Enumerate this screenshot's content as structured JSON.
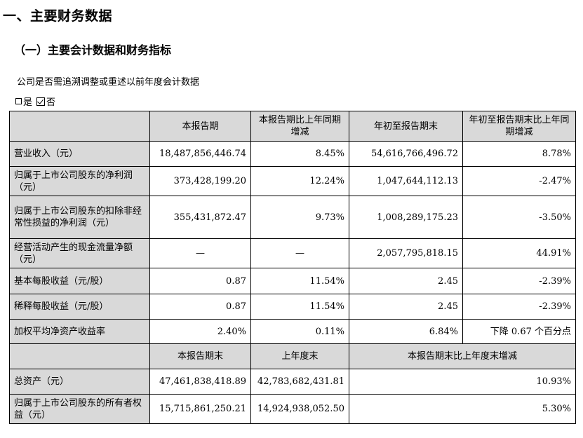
{
  "section_title": "一、主要财务数据",
  "subsection_title": "（一）主要会计数据和财务指标",
  "retro_question": "公司是否需追溯调整或重述以前年度会计数据",
  "retro_options": {
    "yes": "是",
    "no": "否",
    "selected": "否"
  },
  "table1": {
    "headers": [
      "",
      "本报告期",
      "本报告期比上年同期增减",
      "年初至报告期末",
      "年初至报告期末比上年同期增减"
    ],
    "rows": [
      {
        "label": "营业收入（元）",
        "current": "18,487,856,446.74",
        "yoy": "8.45%",
        "ytd": "54,616,766,496.72",
        "ytd_yoy": "8.78%"
      },
      {
        "label": "归属于上市公司股东的净利润（元）",
        "current": "373,428,199.20",
        "yoy": "12.24%",
        "ytd": "1,047,644,112.13",
        "ytd_yoy": "-2.47%"
      },
      {
        "label": "归属于上市公司股东的扣除非经常性损益的净利润（元）",
        "current": "355,431,872.47",
        "yoy": "9.73%",
        "ytd": "1,008,289,175.23",
        "ytd_yoy": "-3.50%"
      },
      {
        "label": "经营活动产生的现金流量净额（元）",
        "current": "—",
        "yoy": "—",
        "ytd": "2,057,795,818.15",
        "ytd_yoy": "44.91%"
      },
      {
        "label": "基本每股收益（元/股）",
        "current": "0.87",
        "yoy": "11.54%",
        "ytd": "2.45",
        "ytd_yoy": "-2.39%"
      },
      {
        "label": "稀释每股收益（元/股）",
        "current": "0.87",
        "yoy": "11.54%",
        "ytd": "2.45",
        "ytd_yoy": "-2.39%"
      },
      {
        "label": "加权平均净资产收益率",
        "current": "2.40%",
        "yoy": "0.11%",
        "ytd": "6.84%",
        "ytd_yoy": "下降 0.67 个百分点"
      }
    ]
  },
  "table2": {
    "headers": [
      "",
      "本报告期末",
      "上年度末",
      "本报告期末比上年度末增减"
    ],
    "rows": [
      {
        "label": "总资产（元）",
        "period_end": "47,461,838,418.89",
        "prior_year_end": "42,783,682,431.81",
        "change": "10.93%"
      },
      {
        "label": "归属于上市公司股东的所有者权益（元）",
        "period_end": "15,715,861,250.21",
        "prior_year_end": "14,924,938,052.50",
        "change": "5.30%"
      }
    ]
  }
}
